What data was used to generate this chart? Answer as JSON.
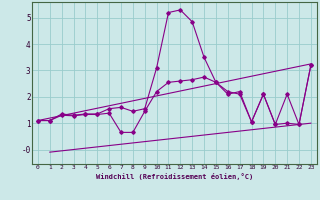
{
  "xlabel": "Windchill (Refroidissement éolien,°C)",
  "background_color": "#cce8e8",
  "grid_color": "#99cccc",
  "line_color": "#880088",
  "xlim": [
    -0.5,
    23.5
  ],
  "ylim": [
    -0.55,
    5.6
  ],
  "xticks": [
    0,
    1,
    2,
    3,
    4,
    5,
    6,
    7,
    8,
    9,
    10,
    11,
    12,
    13,
    14,
    15,
    16,
    17,
    18,
    19,
    20,
    21,
    22,
    23
  ],
  "yticks": [
    0,
    1,
    2,
    3,
    4,
    5
  ],
  "ytick_labels": [
    "-0",
    "1",
    "2",
    "3",
    "4",
    "5"
  ],
  "series1_x": [
    0,
    1,
    2,
    3,
    4,
    5,
    6,
    7,
    8,
    9,
    10,
    11,
    12,
    13,
    14,
    15,
    16,
    17,
    18,
    19,
    20,
    21,
    22,
    23
  ],
  "series1_y": [
    1.1,
    1.1,
    1.35,
    1.3,
    1.35,
    1.35,
    1.55,
    1.6,
    1.45,
    1.55,
    3.1,
    5.2,
    5.3,
    4.85,
    3.5,
    2.55,
    2.1,
    2.2,
    1.05,
    2.1,
    0.95,
    1.0,
    0.95,
    3.2
  ],
  "series2_x": [
    0,
    1,
    2,
    3,
    4,
    5,
    6,
    7,
    8,
    9,
    10,
    11,
    12,
    13,
    14,
    15,
    16,
    17,
    18,
    19,
    20,
    21,
    22,
    23
  ],
  "series2_y": [
    1.1,
    1.1,
    1.3,
    1.28,
    1.33,
    1.33,
    1.38,
    0.65,
    0.65,
    1.45,
    2.2,
    2.55,
    2.6,
    2.65,
    2.75,
    2.55,
    2.2,
    2.1,
    1.05,
    2.1,
    0.95,
    2.1,
    0.95,
    3.2
  ],
  "series3_x": [
    1,
    23
  ],
  "series3_y": [
    -0.1,
    1.0
  ],
  "series4_x": [
    0,
    23
  ],
  "series4_y": [
    1.1,
    3.25
  ]
}
